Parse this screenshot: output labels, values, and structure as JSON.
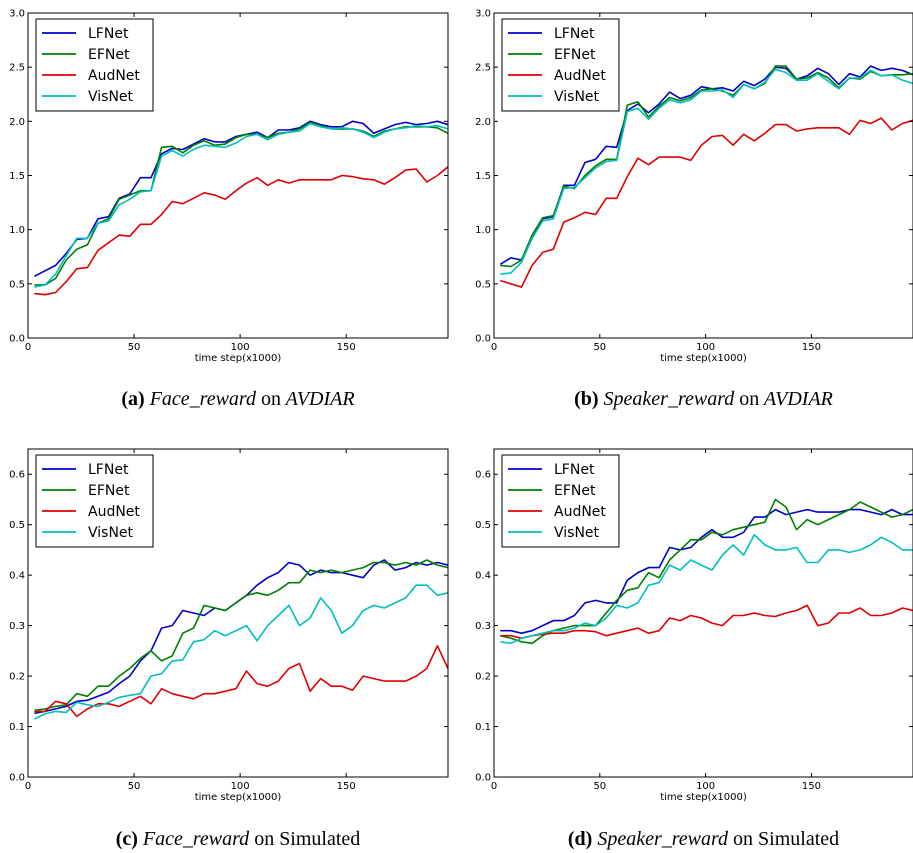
{
  "colors": {
    "LFNet": "#0000cc",
    "EFNet": "#007f00",
    "AudNet": "#e00000",
    "VisNet": "#00bfbf"
  },
  "chart_data": [
    {
      "type": "line",
      "caption": {
        "label": "(a)",
        "metric": "Face_reward",
        "on": "on",
        "dataset": "AVDIAR"
      },
      "xlabel": "time step(x1000)",
      "xlim": [
        0,
        198
      ],
      "ylim": [
        0,
        3.0
      ],
      "xticks": [
        0,
        50,
        100,
        150
      ],
      "yticks": [
        0.0,
        0.5,
        1.0,
        1.5,
        2.0,
        2.5,
        3.0
      ],
      "xticklabels": [
        "0",
        "50",
        "100",
        "150"
      ],
      "yticklabels": [
        "0.0",
        "0.5",
        "1.0",
        "1.5",
        "2.0",
        "2.5",
        "3.0"
      ],
      "legend": "upper-left",
      "x": [
        3,
        8,
        13,
        18,
        23,
        28,
        33,
        38,
        43,
        48,
        53,
        58,
        63,
        68,
        73,
        78,
        83,
        88,
        93,
        98,
        103,
        108,
        113,
        118,
        123,
        128,
        133,
        138,
        143,
        148,
        153,
        158,
        163,
        168,
        173,
        178,
        183,
        188,
        193,
        198
      ],
      "series": [
        {
          "name": "LFNet",
          "values": [
            0.57,
            0.62,
            0.67,
            0.78,
            0.91,
            0.92,
            1.1,
            1.12,
            1.29,
            1.33,
            1.48,
            1.48,
            1.7,
            1.75,
            1.74,
            1.79,
            1.84,
            1.81,
            1.81,
            1.86,
            1.88,
            1.9,
            1.85,
            1.92,
            1.92,
            1.94,
            2.0,
            1.97,
            1.95,
            1.95,
            2.0,
            1.98,
            1.89,
            1.93,
            1.97,
            1.99,
            1.97,
            1.98,
            2.0,
            1.97
          ]
        },
        {
          "name": "EFNet",
          "values": [
            0.49,
            0.49,
            0.55,
            0.72,
            0.82,
            0.86,
            1.06,
            1.1,
            1.28,
            1.32,
            1.36,
            1.36,
            1.76,
            1.77,
            1.71,
            1.78,
            1.82,
            1.78,
            1.79,
            1.85,
            1.88,
            1.88,
            1.85,
            1.89,
            1.9,
            1.93,
            1.99,
            1.96,
            1.93,
            1.93,
            1.93,
            1.91,
            1.86,
            1.91,
            1.93,
            1.95,
            1.95,
            1.95,
            1.94,
            1.89
          ]
        },
        {
          "name": "AudNet",
          "values": [
            0.41,
            0.4,
            0.42,
            0.52,
            0.64,
            0.65,
            0.81,
            0.88,
            0.95,
            0.94,
            1.05,
            1.05,
            1.14,
            1.26,
            1.24,
            1.29,
            1.34,
            1.32,
            1.28,
            1.36,
            1.43,
            1.48,
            1.41,
            1.46,
            1.43,
            1.46,
            1.46,
            1.46,
            1.46,
            1.5,
            1.49,
            1.47,
            1.46,
            1.42,
            1.48,
            1.55,
            1.56,
            1.44,
            1.5,
            1.58
          ]
        },
        {
          "name": "VisNet",
          "values": [
            0.47,
            0.49,
            0.59,
            0.76,
            0.92,
            0.92,
            1.06,
            1.08,
            1.23,
            1.28,
            1.35,
            1.36,
            1.68,
            1.73,
            1.68,
            1.74,
            1.78,
            1.77,
            1.76,
            1.8,
            1.86,
            1.88,
            1.83,
            1.88,
            1.9,
            1.91,
            1.98,
            1.95,
            1.93,
            1.94,
            1.93,
            1.9,
            1.85,
            1.9,
            1.93,
            1.94,
            1.96,
            1.95,
            1.96,
            1.93
          ]
        }
      ]
    },
    {
      "type": "line",
      "caption": {
        "label": "(b)",
        "metric": "Speaker_reward",
        "on": "on",
        "dataset": "AVDIAR"
      },
      "xlabel": "time step(x1000)",
      "xlim": [
        0,
        198
      ],
      "ylim": [
        0,
        3.0
      ],
      "xticks": [
        0,
        50,
        100,
        150
      ],
      "yticks": [
        0.0,
        0.5,
        1.0,
        1.5,
        2.0,
        2.5,
        3.0
      ],
      "xticklabels": [
        "0",
        "50",
        "100",
        "150"
      ],
      "yticklabels": [
        "0.0",
        "0.5",
        "1.0",
        "1.5",
        "2.0",
        "2.5",
        "3.0"
      ],
      "legend": "upper-left",
      "x": [
        3,
        8,
        13,
        18,
        23,
        28,
        33,
        38,
        43,
        48,
        53,
        58,
        63,
        68,
        73,
        78,
        83,
        88,
        93,
        98,
        103,
        108,
        113,
        118,
        123,
        128,
        133,
        138,
        143,
        148,
        153,
        158,
        163,
        168,
        173,
        178,
        183,
        188,
        193,
        198
      ],
      "series": [
        {
          "name": "LFNet",
          "values": [
            0.68,
            0.74,
            0.72,
            0.92,
            1.1,
            1.12,
            1.41,
            1.41,
            1.62,
            1.65,
            1.77,
            1.76,
            2.1,
            2.16,
            2.08,
            2.16,
            2.27,
            2.21,
            2.24,
            2.32,
            2.3,
            2.31,
            2.28,
            2.37,
            2.33,
            2.39,
            2.5,
            2.49,
            2.39,
            2.42,
            2.49,
            2.44,
            2.34,
            2.44,
            2.41,
            2.51,
            2.47,
            2.49,
            2.47,
            2.43
          ]
        },
        {
          "name": "EFNet",
          "values": [
            0.67,
            0.66,
            0.72,
            0.95,
            1.11,
            1.13,
            1.4,
            1.38,
            1.5,
            1.59,
            1.65,
            1.65,
            2.15,
            2.18,
            2.04,
            2.14,
            2.22,
            2.19,
            2.22,
            2.29,
            2.3,
            2.28,
            2.24,
            2.34,
            2.3,
            2.35,
            2.51,
            2.51,
            2.39,
            2.4,
            2.45,
            2.4,
            2.31,
            2.4,
            2.39,
            2.46,
            2.42,
            2.43,
            2.43,
            2.44
          ]
        },
        {
          "name": "AudNet",
          "values": [
            0.53,
            0.5,
            0.47,
            0.67,
            0.79,
            0.82,
            1.07,
            1.11,
            1.16,
            1.14,
            1.29,
            1.29,
            1.49,
            1.66,
            1.6,
            1.67,
            1.67,
            1.67,
            1.64,
            1.78,
            1.86,
            1.87,
            1.78,
            1.88,
            1.82,
            1.89,
            1.97,
            1.97,
            1.91,
            1.93,
            1.94,
            1.94,
            1.94,
            1.88,
            2.01,
            1.98,
            2.03,
            1.92,
            1.98,
            2.01
          ]
        },
        {
          "name": "VisNet",
          "values": [
            0.59,
            0.6,
            0.7,
            0.92,
            1.08,
            1.1,
            1.38,
            1.39,
            1.48,
            1.57,
            1.63,
            1.64,
            2.09,
            2.12,
            2.02,
            2.12,
            2.2,
            2.17,
            2.2,
            2.28,
            2.28,
            2.29,
            2.22,
            2.34,
            2.3,
            2.36,
            2.48,
            2.45,
            2.38,
            2.38,
            2.44,
            2.37,
            2.3,
            2.4,
            2.4,
            2.47,
            2.42,
            2.43,
            2.38,
            2.35
          ]
        }
      ]
    },
    {
      "type": "line",
      "caption": {
        "label": "(c)",
        "metric": "Face_reward",
        "on": "on Simulated",
        "dataset": ""
      },
      "xlabel": "time step(x1000)",
      "xlim": [
        0,
        198
      ],
      "ylim": [
        0,
        0.65
      ],
      "xticks": [
        0,
        50,
        100,
        150
      ],
      "yticks": [
        0.0,
        0.1,
        0.2,
        0.3,
        0.4,
        0.5,
        0.6
      ],
      "xticklabels": [
        "0",
        "50",
        "100",
        "150"
      ],
      "yticklabels": [
        "0.0",
        "0.1",
        "0.2",
        "0.3",
        "0.4",
        "0.5",
        "0.6"
      ],
      "legend": "upper-left",
      "x": [
        3,
        8,
        13,
        18,
        23,
        28,
        33,
        38,
        43,
        48,
        53,
        58,
        63,
        68,
        73,
        78,
        83,
        88,
        93,
        98,
        103,
        108,
        113,
        118,
        123,
        128,
        133,
        138,
        143,
        148,
        153,
        158,
        163,
        168,
        173,
        178,
        183,
        188,
        193,
        198
      ],
      "series": [
        {
          "name": "LFNet",
          "values": [
            0.126,
            0.13,
            0.135,
            0.14,
            0.15,
            0.152,
            0.16,
            0.168,
            0.185,
            0.2,
            0.23,
            0.25,
            0.295,
            0.3,
            0.33,
            0.325,
            0.32,
            0.335,
            0.33,
            0.345,
            0.36,
            0.38,
            0.395,
            0.405,
            0.425,
            0.42,
            0.4,
            0.41,
            0.405,
            0.405,
            0.4,
            0.395,
            0.42,
            0.43,
            0.41,
            0.415,
            0.425,
            0.42,
            0.425,
            0.42
          ]
        },
        {
          "name": "EFNet",
          "values": [
            0.132,
            0.135,
            0.14,
            0.143,
            0.165,
            0.16,
            0.18,
            0.18,
            0.2,
            0.215,
            0.235,
            0.25,
            0.23,
            0.24,
            0.285,
            0.295,
            0.34,
            0.335,
            0.33,
            0.345,
            0.36,
            0.365,
            0.36,
            0.37,
            0.385,
            0.385,
            0.41,
            0.405,
            0.41,
            0.405,
            0.41,
            0.415,
            0.425,
            0.425,
            0.42,
            0.425,
            0.42,
            0.43,
            0.42,
            0.415
          ]
        },
        {
          "name": "AudNet",
          "values": [
            0.13,
            0.13,
            0.15,
            0.145,
            0.12,
            0.135,
            0.145,
            0.145,
            0.14,
            0.15,
            0.16,
            0.145,
            0.175,
            0.165,
            0.16,
            0.155,
            0.165,
            0.165,
            0.17,
            0.175,
            0.21,
            0.185,
            0.18,
            0.19,
            0.215,
            0.225,
            0.17,
            0.195,
            0.18,
            0.18,
            0.172,
            0.2,
            0.195,
            0.19,
            0.19,
            0.19,
            0.2,
            0.215,
            0.26,
            0.215
          ]
        },
        {
          "name": "VisNet",
          "values": [
            0.115,
            0.125,
            0.13,
            0.128,
            0.148,
            0.143,
            0.14,
            0.148,
            0.158,
            0.162,
            0.165,
            0.2,
            0.205,
            0.23,
            0.232,
            0.268,
            0.272,
            0.29,
            0.28,
            0.29,
            0.3,
            0.27,
            0.3,
            0.32,
            0.34,
            0.3,
            0.315,
            0.355,
            0.33,
            0.285,
            0.3,
            0.33,
            0.34,
            0.335,
            0.345,
            0.355,
            0.38,
            0.38,
            0.36,
            0.365
          ]
        }
      ]
    },
    {
      "type": "line",
      "caption": {
        "label": "(d)",
        "metric": "Speaker_reward",
        "on": "on Simulated",
        "dataset": ""
      },
      "xlabel": "time step(x1000)",
      "xlim": [
        0,
        198
      ],
      "ylim": [
        0,
        0.65
      ],
      "xticks": [
        0,
        50,
        100,
        150
      ],
      "yticks": [
        0.0,
        0.1,
        0.2,
        0.3,
        0.4,
        0.5,
        0.6
      ],
      "xticklabels": [
        "0",
        "50",
        "100",
        "150"
      ],
      "yticklabels": [
        "0.0",
        "0.1",
        "0.2",
        "0.3",
        "0.4",
        "0.5",
        "0.6"
      ],
      "legend": "upper-left",
      "x": [
        3,
        8,
        13,
        18,
        23,
        28,
        33,
        38,
        43,
        48,
        53,
        58,
        63,
        68,
        73,
        78,
        83,
        88,
        93,
        98,
        103,
        108,
        113,
        118,
        123,
        128,
        133,
        138,
        143,
        148,
        153,
        158,
        163,
        168,
        173,
        178,
        183,
        188,
        193,
        198
      ],
      "series": [
        {
          "name": "LFNet",
          "values": [
            0.29,
            0.29,
            0.285,
            0.29,
            0.3,
            0.31,
            0.31,
            0.32,
            0.345,
            0.35,
            0.345,
            0.345,
            0.39,
            0.405,
            0.415,
            0.415,
            0.455,
            0.45,
            0.455,
            0.475,
            0.49,
            0.475,
            0.475,
            0.485,
            0.515,
            0.515,
            0.53,
            0.52,
            0.525,
            0.53,
            0.525,
            0.525,
            0.525,
            0.53,
            0.53,
            0.525,
            0.52,
            0.53,
            0.52,
            0.52
          ]
        },
        {
          "name": "EFNet",
          "values": [
            0.28,
            0.275,
            0.268,
            0.265,
            0.28,
            0.29,
            0.295,
            0.3,
            0.3,
            0.3,
            0.325,
            0.35,
            0.37,
            0.375,
            0.405,
            0.395,
            0.43,
            0.45,
            0.47,
            0.47,
            0.485,
            0.48,
            0.49,
            0.495,
            0.5,
            0.505,
            0.55,
            0.535,
            0.49,
            0.51,
            0.5,
            0.51,
            0.52,
            0.53,
            0.545,
            0.535,
            0.525,
            0.515,
            0.52,
            0.53
          ]
        },
        {
          "name": "AudNet",
          "values": [
            0.28,
            0.28,
            0.275,
            0.28,
            0.283,
            0.285,
            0.285,
            0.29,
            0.29,
            0.288,
            0.28,
            0.285,
            0.29,
            0.295,
            0.285,
            0.29,
            0.315,
            0.31,
            0.32,
            0.315,
            0.305,
            0.3,
            0.32,
            0.32,
            0.325,
            0.32,
            0.318,
            0.325,
            0.33,
            0.34,
            0.3,
            0.305,
            0.325,
            0.325,
            0.335,
            0.32,
            0.32,
            0.325,
            0.335,
            0.33
          ]
        },
        {
          "name": "VisNet",
          "values": [
            0.268,
            0.265,
            0.275,
            0.28,
            0.285,
            0.29,
            0.29,
            0.295,
            0.305,
            0.3,
            0.315,
            0.34,
            0.335,
            0.345,
            0.38,
            0.385,
            0.42,
            0.41,
            0.43,
            0.42,
            0.41,
            0.44,
            0.46,
            0.44,
            0.48,
            0.46,
            0.45,
            0.45,
            0.455,
            0.425,
            0.425,
            0.45,
            0.45,
            0.445,
            0.45,
            0.46,
            0.475,
            0.465,
            0.45,
            0.45
          ]
        }
      ]
    }
  ]
}
